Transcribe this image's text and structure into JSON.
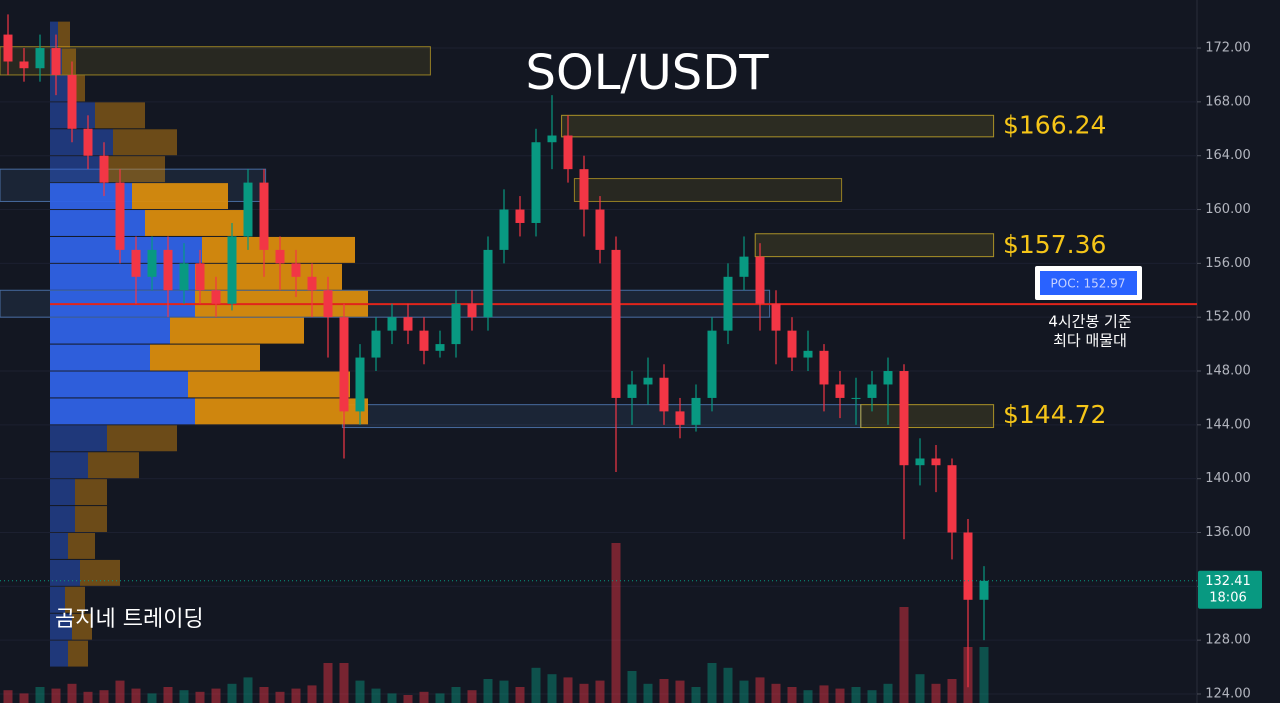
{
  "chart_data": {
    "type": "candlestick",
    "title": "SOL/USDT",
    "watermark": "곰지네 트레이딩",
    "ylim": [
      123.33,
      175.57
    ],
    "yticks": [
      {
        "value": 124,
        "label": "124.00"
      },
      {
        "value": 128,
        "label": "128.00"
      },
      {
        "value": 132,
        "label": "132.00"
      },
      {
        "value": 136,
        "label": "136.00"
      },
      {
        "value": 140,
        "label": "140.00"
      },
      {
        "value": 144,
        "label": "144.00"
      },
      {
        "value": 148,
        "label": "148.00"
      },
      {
        "value": 152,
        "label": "152.00"
      },
      {
        "value": 156,
        "label": "156.00"
      },
      {
        "value": 160,
        "label": "160.00"
      },
      {
        "value": 164,
        "label": "164.00"
      },
      {
        "value": 168,
        "label": "168.00"
      },
      {
        "value": 172,
        "label": "172.00"
      }
    ],
    "up_color": "#089981",
    "down_color": "#f23645",
    "open": [
      173,
      171,
      170.5,
      172,
      170,
      166,
      164,
      162,
      157,
      155,
      157,
      154,
      156,
      154,
      153,
      158,
      162,
      157,
      156,
      155,
      154,
      152,
      145,
      149,
      151,
      152,
      151,
      149.5,
      150,
      153,
      152,
      157,
      160,
      159,
      165,
      165.5,
      163,
      160,
      157,
      146,
      147,
      147.5,
      145,
      144,
      146,
      151,
      155,
      156.5,
      153,
      151,
      149,
      149.5,
      147,
      146,
      146,
      147,
      148,
      141,
      141.5,
      141,
      136,
      131
    ],
    "high": [
      174.5,
      172,
      173,
      173,
      171,
      167,
      165,
      163,
      158,
      158,
      158,
      157.5,
      157,
      155,
      159,
      163,
      163,
      158,
      157,
      156,
      155,
      153,
      150,
      152,
      153,
      153,
      152,
      151,
      154,
      154,
      158,
      161.5,
      161,
      166,
      168.5,
      167,
      164,
      161,
      158,
      148,
      149,
      148.5,
      146,
      147,
      152,
      156,
      158,
      157.5,
      154,
      152,
      151,
      150,
      148,
      147.5,
      148,
      149,
      148.5,
      143,
      142.5,
      141.5,
      137,
      133.5
    ],
    "low": [
      170,
      169.5,
      169.5,
      168.5,
      165,
      163,
      161,
      156,
      153,
      154,
      152,
      153,
      153,
      152,
      152.5,
      157,
      155,
      154,
      153.5,
      152,
      149,
      141.5,
      144,
      148,
      150,
      150,
      148.5,
      149,
      149,
      151,
      151,
      156,
      158,
      158,
      163,
      162,
      158,
      156,
      140.5,
      144,
      145.5,
      144,
      143,
      143.5,
      145,
      150,
      154,
      151,
      148.5,
      148,
      148,
      145,
      144.5,
      144,
      145,
      144,
      135.5,
      139.5,
      139,
      134,
      124.5,
      128
    ],
    "close": [
      171,
      170.5,
      172,
      170,
      166,
      164,
      162,
      157,
      155,
      157,
      154,
      156,
      154,
      153,
      158,
      162,
      157,
      156,
      155,
      154,
      152,
      145,
      149,
      151,
      152,
      151,
      149.5,
      150,
      153,
      152,
      157,
      160,
      159,
      165,
      165.5,
      163,
      160,
      157,
      146,
      147,
      147.5,
      145,
      144,
      146,
      151,
      155,
      156.5,
      153,
      151,
      149,
      149.5,
      147,
      146,
      146,
      147,
      148,
      141,
      141.5,
      141,
      136,
      131,
      132.41
    ],
    "volume": [
      8,
      6,
      10,
      9,
      12,
      7,
      8,
      14,
      9,
      6,
      10,
      8,
      7,
      9,
      12,
      16,
      10,
      7,
      9,
      11,
      25,
      25,
      14,
      9,
      6,
      5,
      7,
      6,
      10,
      8,
      15,
      14,
      10,
      22,
      18,
      16,
      12,
      14,
      100,
      20,
      12,
      15,
      14,
      10,
      25,
      22,
      14,
      16,
      12,
      10,
      8,
      11,
      9,
      10,
      8,
      12,
      60,
      18,
      12,
      15,
      35,
      35
    ],
    "current_price": {
      "value": 132.41,
      "label": "132.41",
      "countdown": "18:06"
    },
    "profile": {
      "up_color": "#2f62e6",
      "down_color": "#d98c0e",
      "value_area_low": 144,
      "value_area_high": 162,
      "rows": [
        {
          "price": 173,
          "up": 8,
          "down": 12
        },
        {
          "price": 171,
          "up": 12,
          "down": 14
        },
        {
          "price": 169,
          "up": 20,
          "down": 15
        },
        {
          "price": 167,
          "up": 45,
          "down": 50
        },
        {
          "price": 165,
          "up": 63,
          "down": 64
        },
        {
          "price": 163,
          "up": 55,
          "down": 60
        },
        {
          "price": 161,
          "up": 82,
          "down": 96
        },
        {
          "price": 159,
          "up": 95,
          "down": 102
        },
        {
          "price": 157,
          "up": 152,
          "down": 153
        },
        {
          "price": 155,
          "up": 145,
          "down": 147
        },
        {
          "price": 153,
          "up": 145,
          "down": 173
        },
        {
          "price": 151,
          "up": 120,
          "down": 134
        },
        {
          "price": 149,
          "up": 100,
          "down": 110
        },
        {
          "price": 147,
          "up": 138,
          "down": 162
        },
        {
          "price": 145,
          "up": 145,
          "down": 173
        },
        {
          "price": 143,
          "up": 57,
          "down": 70
        },
        {
          "price": 141,
          "up": 38,
          "down": 51
        },
        {
          "price": 139,
          "up": 25,
          "down": 32
        },
        {
          "price": 137,
          "up": 25,
          "down": 32
        },
        {
          "price": 135,
          "up": 18,
          "down": 27
        },
        {
          "price": 133,
          "up": 30,
          "down": 40
        },
        {
          "price": 131,
          "up": 15,
          "down": 20
        },
        {
          "price": 129,
          "up": 22,
          "down": 20
        },
        {
          "price": 127,
          "up": 18,
          "down": 20
        }
      ]
    },
    "zones": [
      {
        "top": 172.1,
        "bottom": 170.0,
        "from": -0.5,
        "to": 26.4,
        "color": "#c9a825"
      },
      {
        "top": 167.0,
        "bottom": 165.4,
        "from": 34.6,
        "to": 61.6,
        "color": "#e6c229"
      },
      {
        "top": 162.3,
        "bottom": 160.6,
        "from": 35.4,
        "to": 52.1,
        "color": "#c9a825"
      },
      {
        "top": 163.0,
        "bottom": 160.6,
        "from": -0.5,
        "to": 16.1,
        "color": "#5b8bd0"
      },
      {
        "top": 158.2,
        "bottom": 156.5,
        "from": 46.7,
        "to": 61.6,
        "color": "#e6c229"
      },
      {
        "top": 154.0,
        "bottom": 152.0,
        "from": -0.5,
        "to": 47.6,
        "color": "#5b8bd0"
      },
      {
        "top": 145.5,
        "bottom": 143.8,
        "from": 20.9,
        "to": 53.3,
        "color": "#5b8bd0"
      },
      {
        "top": 145.5,
        "bottom": 143.8,
        "from": 53.3,
        "to": 61.6,
        "color": "#e6c229"
      }
    ],
    "price_labels": [
      {
        "value": 166.24,
        "label": "$166.24"
      },
      {
        "value": 157.36,
        "label": "$157.36"
      },
      {
        "value": 144.72,
        "label": "$144.72"
      }
    ],
    "poc": {
      "value": 152.97,
      "label": "POC: 152.97",
      "color": "#e0251b"
    },
    "annotation": [
      "4시간봉 기준",
      "최다 매물대"
    ]
  }
}
